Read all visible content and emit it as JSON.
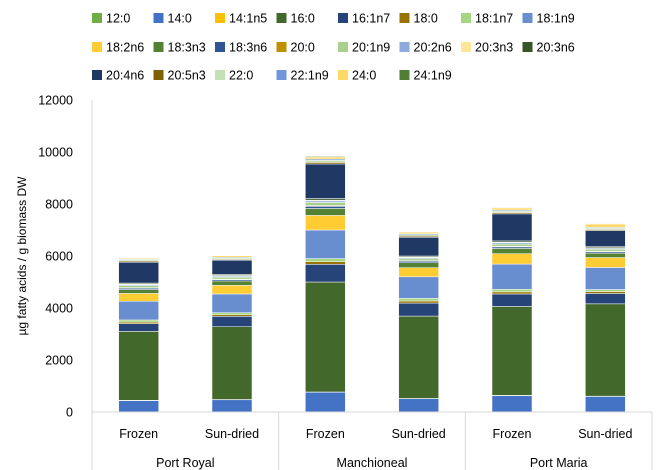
{
  "chart_data": {
    "type": "stacked-bar",
    "ylabel": "µg fatty acids / g biomass DW",
    "ylim": [
      0,
      12000
    ],
    "yticks": [
      0,
      2000,
      4000,
      6000,
      8000,
      10000,
      12000
    ],
    "grid": false,
    "legend_position": "top",
    "categories": [
      "Frozen",
      "Sun-dried",
      "Frozen",
      "Sun-dried",
      "Frozen",
      "Sun-dried"
    ],
    "groups": [
      {
        "label": "Port Royal",
        "span": [
          0,
          1
        ]
      },
      {
        "label": "Manchioneal",
        "span": [
          2,
          3
        ]
      },
      {
        "label": "Port Maria",
        "span": [
          4,
          5
        ]
      }
    ],
    "series": [
      {
        "name": "12:0",
        "color": "#70AD47",
        "values": [
          10,
          10,
          10,
          10,
          10,
          10
        ]
      },
      {
        "name": "14:0",
        "color": "#4472C4",
        "values": [
          430,
          460,
          750,
          500,
          620,
          590
        ]
      },
      {
        "name": "14:1n5",
        "color": "#FFC000",
        "values": [
          10,
          10,
          10,
          10,
          10,
          10
        ]
      },
      {
        "name": "16:0",
        "color": "#43682B",
        "values": [
          2650,
          2800,
          4230,
          3170,
          3420,
          3550
        ]
      },
      {
        "name": "16:1n7",
        "color": "#264478",
        "values": [
          300,
          400,
          680,
          500,
          480,
          400
        ]
      },
      {
        "name": "18:0",
        "color": "#997300",
        "values": [
          60,
          60,
          100,
          80,
          80,
          70
        ]
      },
      {
        "name": "18:1n7",
        "color": "#A5D681",
        "values": [
          80,
          80,
          120,
          100,
          100,
          80
        ]
      },
      {
        "name": "18:1n9",
        "color": "#698ED0",
        "values": [
          720,
          720,
          1100,
          830,
          970,
          850
        ]
      },
      {
        "name": "18:2n6",
        "color": "#FFCD33",
        "values": [
          300,
          330,
          560,
          350,
          400,
          380
        ]
      },
      {
        "name": "18:3n3",
        "color": "#548235",
        "values": [
          150,
          170,
          270,
          190,
          200,
          170
        ]
      },
      {
        "name": "18:3n6",
        "color": "#2F5597",
        "values": [
          50,
          50,
          80,
          60,
          60,
          50
        ]
      },
      {
        "name": "20:0",
        "color": "#BF9000",
        "values": [
          20,
          20,
          30,
          20,
          20,
          20
        ]
      },
      {
        "name": "20:1n9",
        "color": "#A9D18E",
        "values": [
          80,
          80,
          120,
          80,
          90,
          80
        ]
      },
      {
        "name": "20:2n6",
        "color": "#8FAADC",
        "values": [
          40,
          40,
          60,
          40,
          50,
          40
        ]
      },
      {
        "name": "20:3n3",
        "color": "#FFE699",
        "values": [
          20,
          20,
          30,
          20,
          20,
          20
        ]
      },
      {
        "name": "20:3n6",
        "color": "#375623",
        "values": [
          40,
          40,
          60,
          40,
          50,
          40
        ]
      },
      {
        "name": "20:4n6",
        "color": "#1F3864",
        "values": [
          800,
          550,
          1330,
          720,
          1040,
          620
        ]
      },
      {
        "name": "20:5n3",
        "color": "#7F6000",
        "values": [
          40,
          30,
          60,
          40,
          50,
          40
        ]
      },
      {
        "name": "22:0",
        "color": "#C5E0B4",
        "values": [
          50,
          50,
          80,
          60,
          60,
          50
        ]
      },
      {
        "name": "22:1n9",
        "color": "#6F97D9",
        "values": [
          30,
          30,
          50,
          40,
          40,
          30
        ]
      },
      {
        "name": "24:0",
        "color": "#FFD966",
        "values": [
          40,
          60,
          80,
          60,
          80,
          130
        ]
      },
      {
        "name": "24:1n9",
        "color": "#507E32",
        "values": [
          20,
          20,
          30,
          20,
          20,
          20
        ]
      }
    ]
  }
}
